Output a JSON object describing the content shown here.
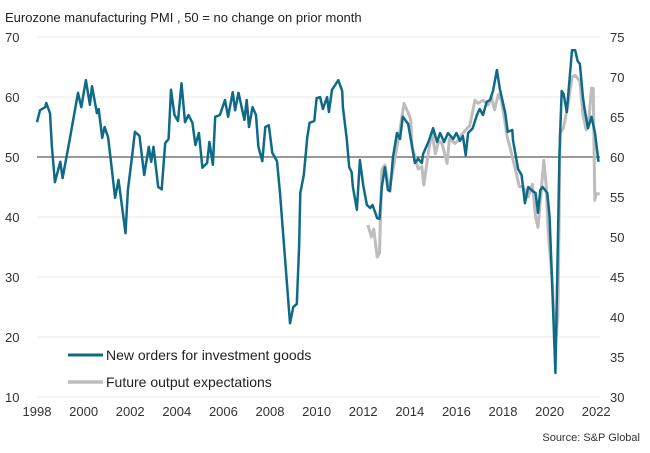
{
  "chart_data": {
    "type": "line",
    "title": "Eurozone manufacturing PMI , 50 = no change on prior month",
    "source": "Source: S&P Global",
    "xlabel": "",
    "ylabel_left": "",
    "ylabel_right": "",
    "xlim": [
      1998,
      2022.2
    ],
    "ylim_left": [
      10,
      70
    ],
    "ylim_right": [
      30,
      75
    ],
    "x_ticks": [
      "1998",
      "2000",
      "2002",
      "2004",
      "2006",
      "2008",
      "2010",
      "2012",
      "2014",
      "2016",
      "2018",
      "2020",
      "2022"
    ],
    "y_ticks_left": [
      "10",
      "20",
      "30",
      "40",
      "50",
      "60",
      "70"
    ],
    "y_ticks_right": [
      "30",
      "35",
      "40",
      "45",
      "50",
      "55",
      "60",
      "65",
      "70",
      "75"
    ],
    "reference_line_left": 50,
    "grid": true,
    "legend_position": "bottom-left",
    "colors": {
      "new_orders": "#0e6a86",
      "future_output": "#bdbdbd",
      "reference": "#333333",
      "grid": "#e8e8e8"
    },
    "series": [
      {
        "name": "New orders for investment goods",
        "axis": "left",
        "x": [
          1998.0,
          1998.13,
          1998.35,
          1998.4,
          1998.56,
          1998.64,
          1998.77,
          1999.0,
          1999.1,
          1999.4,
          1999.76,
          1999.9,
          2000.1,
          2000.27,
          2000.36,
          2000.57,
          2000.65,
          2000.8,
          2000.9,
          2001.05,
          2001.2,
          2001.35,
          2001.5,
          2001.8,
          2001.9,
          2002.1,
          2002.2,
          2002.4,
          2002.6,
          2002.8,
          2002.9,
          2003.0,
          2003.2,
          2003.35,
          2003.5,
          2003.65,
          2003.75,
          2003.9,
          2004.05,
          2004.2,
          2004.35,
          2004.5,
          2004.67,
          2004.8,
          2004.95,
          2005.1,
          2005.3,
          2005.4,
          2005.55,
          2005.65,
          2005.85,
          2006.07,
          2006.2,
          2006.4,
          2006.5,
          2006.65,
          2006.9,
          2007.0,
          2007.1,
          2007.25,
          2007.4,
          2007.5,
          2007.67,
          2007.8,
          2007.95,
          2008.1,
          2008.3,
          2008.43,
          2008.86,
          2009.0,
          2009.15,
          2009.25,
          2009.3,
          2009.45,
          2009.6,
          2009.7,
          2009.9,
          2010.0,
          2010.15,
          2010.27,
          2010.45,
          2010.53,
          2010.66,
          2010.88,
          2010.93,
          2011.1,
          2011.13,
          2011.3,
          2011.4,
          2011.5,
          2011.56,
          2011.73,
          2011.86,
          2012.0,
          2012.16,
          2012.3,
          2012.4,
          2012.6,
          2012.7,
          2012.8,
          2012.93,
          2013.06,
          2013.15,
          2013.28,
          2013.45,
          2013.58,
          2013.7,
          2013.93,
          2014.1,
          2014.22,
          2014.36,
          2014.52,
          2014.57,
          2014.8,
          2015.0,
          2015.17,
          2015.3,
          2015.47,
          2015.64,
          2015.86,
          2016.0,
          2016.15,
          2016.28,
          2016.4,
          2016.5,
          2016.7,
          2016.88,
          2017.0,
          2017.14,
          2017.3,
          2017.44,
          2017.57,
          2017.74,
          2017.87,
          2018.1,
          2018.2,
          2018.4,
          2018.43,
          2018.65,
          2018.8,
          2018.94,
          2019.08,
          2019.28,
          2019.4,
          2019.5,
          2019.6,
          2019.7,
          2019.9,
          2020.0,
          2020.1,
          2020.25,
          2020.35,
          2020.42,
          2020.47,
          2020.52,
          2020.6,
          2020.74,
          2020.96,
          2021.1,
          2021.2,
          2021.3,
          2021.43,
          2021.5,
          2021.65,
          2021.8,
          2021.95,
          2022.1
        ],
        "values": [
          55.8,
          57.8,
          58.3,
          59,
          57.3,
          51.7,
          45.8,
          49.2,
          46.5,
          52.8,
          60.7,
          58.3,
          62.8,
          58.7,
          61.8,
          57.3,
          58,
          53.2,
          55,
          53.3,
          48.3,
          43.2,
          46.2,
          37.3,
          44.5,
          50.7,
          54.2,
          53.5,
          47,
          51.7,
          49.2,
          51.7,
          45,
          44.6,
          52.3,
          53,
          61.2,
          57,
          56,
          62.3,
          55.8,
          57,
          55.7,
          52,
          54,
          48.2,
          49,
          52.5,
          48.7,
          56.7,
          57,
          59.5,
          56.7,
          60.8,
          57.8,
          60.7,
          56.2,
          59.5,
          55,
          58.3,
          57,
          51.7,
          49.3,
          55,
          55.3,
          50.7,
          49.3,
          44,
          22.3,
          25,
          25.5,
          35,
          44,
          47,
          53.3,
          55.7,
          56,
          59.8,
          60,
          58,
          60,
          57.5,
          61.2,
          62.5,
          62.8,
          61,
          58.3,
          52.8,
          48.3,
          47.5,
          45,
          41.2,
          49.5,
          45.3,
          42,
          41.5,
          42,
          39.8,
          39.7,
          45,
          48.3,
          44.5,
          44.3,
          50,
          54,
          53,
          56.7,
          55.5,
          51.7,
          49,
          49.7,
          49,
          50.5,
          52.5,
          54.8,
          52.5,
          54,
          52.5,
          54,
          53,
          54,
          52.7,
          53.5,
          50.3,
          54,
          54.8,
          57,
          58,
          57,
          59.2,
          59.5,
          61,
          64.5,
          61.2,
          57.3,
          54.2,
          54.5,
          52.8,
          48,
          47,
          42.3,
          45,
          44.3,
          44,
          40.7,
          44.5,
          45,
          44,
          40,
          30,
          14,
          35,
          50,
          56,
          61,
          60.5,
          57.5,
          67.8,
          67.8,
          66,
          65.5,
          60,
          58,
          54.8,
          56.7,
          54,
          49.2
        ]
      },
      {
        "name": "Future output expectations",
        "axis": "right",
        "x": [
          2012.2,
          2012.35,
          2012.45,
          2012.6,
          2012.7,
          2012.8,
          2012.93,
          2013.06,
          2013.15,
          2013.35,
          2013.45,
          2013.6,
          2013.75,
          2013.93,
          2014.04,
          2014.1,
          2014.36,
          2014.52,
          2014.6,
          2014.8,
          2014.95,
          2015.1,
          2015.24,
          2015.38,
          2015.6,
          2015.7,
          2015.93,
          2016.07,
          2016.2,
          2016.43,
          2016.57,
          2016.8,
          2016.93,
          2017.14,
          2017.36,
          2017.5,
          2017.64,
          2017.8,
          2017.93,
          2018.04,
          2018.18,
          2018.3,
          2018.5,
          2018.7,
          2018.86,
          2019.08,
          2019.26,
          2019.4,
          2019.5,
          2019.64,
          2019.75,
          2019.86,
          2019.93,
          2020.1,
          2020.25,
          2020.35,
          2020.4,
          2020.45,
          2020.6,
          2020.8,
          2020.96,
          2021.1,
          2021.3,
          2021.43,
          2021.57,
          2021.7,
          2021.8,
          2021.87,
          2021.94,
          2022.0,
          2022.15
        ],
        "values": [
          51.5,
          50,
          51,
          47.5,
          48,
          58.4,
          59,
          56.9,
          56.3,
          59.6,
          61.3,
          63.8,
          66.7,
          65.5,
          64.7,
          61.3,
          58.5,
          58.8,
          56.5,
          60.6,
          63.1,
          60.4,
          62,
          61.7,
          59.2,
          62.3,
          61.7,
          62,
          62.7,
          63.5,
          63.9,
          67.1,
          66.7,
          67.1,
          66.5,
          67.5,
          65.9,
          67.8,
          67.1,
          65.2,
          62.5,
          61.2,
          58.8,
          56.3,
          56.3,
          55,
          56.6,
          52.5,
          51.2,
          55.8,
          59.6,
          56.3,
          51,
          45,
          36.5,
          40,
          50,
          63,
          63.7,
          66.7,
          70,
          70.2,
          69.5,
          65.3,
          63.4,
          65.1,
          68.6,
          68.6,
          54.6,
          55.4,
          55.4
        ]
      }
    ]
  }
}
